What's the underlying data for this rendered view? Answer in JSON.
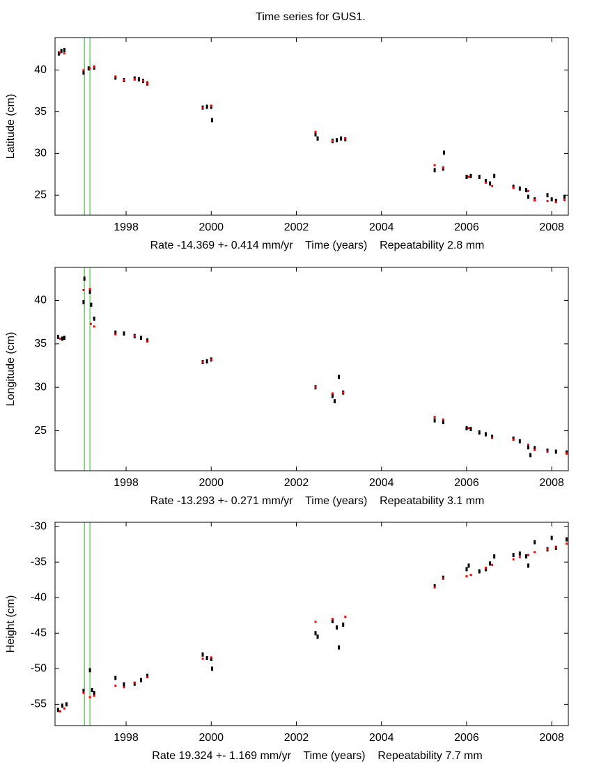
{
  "title": "Time series for GUS1.",
  "chart_data": [
    {
      "type": "scatter",
      "ylabel": "Latitude (cm)",
      "xlabel": "Rate -14.369 +- 0.414 mm/yr    Time (years)    Repeatability 2.8 mm",
      "xlim": [
        1996.33,
        2008.39
      ],
      "ylim": [
        22.6,
        43.9
      ],
      "xticks": [
        1998,
        2000,
        2002,
        2004,
        2006,
        2008
      ],
      "yticks": [
        25,
        30,
        35,
        40
      ],
      "vlines": [
        1997.02,
        1997.15
      ],
      "vline_color": "#00cc00",
      "series": [
        {
          "color": "#000000",
          "x": [
            1996.42,
            1996.48,
            1996.55,
            1997.0,
            1997.12,
            1997.25,
            1997.75,
            1997.95,
            1998.2,
            1998.3,
            1998.4,
            1998.5,
            1999.8,
            1999.9,
            2000.0,
            2000.02,
            2002.45,
            2002.5,
            2002.85,
            2002.95,
            2003.05,
            2003.15,
            2005.25,
            2005.45,
            2005.47,
            2006.0,
            2006.1,
            2006.3,
            2006.45,
            2006.55,
            2006.65,
            2007.1,
            2007.25,
            2007.4,
            2007.45,
            2007.6,
            2007.9,
            2008.0,
            2008.1,
            2008.3
          ],
          "values": [
            42.0,
            42.3,
            42.4,
            39.7,
            40.2,
            40.3,
            39.1,
            38.8,
            39.0,
            38.9,
            38.7,
            38.4,
            35.5,
            35.6,
            35.6,
            34.0,
            32.3,
            31.8,
            31.5,
            31.6,
            31.8,
            31.7,
            28.0,
            28.2,
            30.1,
            27.2,
            27.3,
            27.2,
            26.7,
            26.4,
            27.3,
            26.0,
            25.8,
            25.6,
            24.8,
            24.5,
            25.0,
            24.5,
            24.3,
            24.8
          ]
        },
        {
          "color": "#ff0000",
          "x": [
            1996.45,
            1996.55,
            1997.0,
            1997.15,
            1997.25,
            1997.75,
            1997.95,
            1998.2,
            1998.4,
            1998.5,
            1999.8,
            2000.0,
            2002.45,
            2002.85,
            2003.15,
            2005.25,
            2005.45,
            2006.05,
            2006.45,
            2006.6,
            2007.1,
            2007.45,
            2007.6,
            2007.9,
            2008.1,
            2008.3
          ],
          "values": [
            42.1,
            42.0,
            40.0,
            40.2,
            40.4,
            39.2,
            38.8,
            38.9,
            38.7,
            38.4,
            35.5,
            35.7,
            32.6,
            31.5,
            31.8,
            28.6,
            28.3,
            27.2,
            26.5,
            26.1,
            25.9,
            25.5,
            24.4,
            24.3,
            24.2,
            24.4
          ]
        }
      ]
    },
    {
      "type": "scatter",
      "ylabel": "Longitude (cm)",
      "xlabel": "Rate -13.293 +- 0.271 mm/yr    Time (years)    Repeatability 3.1 mm",
      "xlim": [
        1996.33,
        2008.39
      ],
      "ylim": [
        20.4,
        43.8
      ],
      "xticks": [
        1998,
        2000,
        2002,
        2004,
        2006,
        2008
      ],
      "yticks": [
        25,
        30,
        35,
        40
      ],
      "vlines": [
        1997.02,
        1997.15
      ],
      "vline_color": "#00cc00",
      "series": [
        {
          "color": "#000000",
          "x": [
            1996.4,
            1996.5,
            1996.55,
            1997.0,
            1997.02,
            1997.15,
            1997.18,
            1997.25,
            1997.75,
            1997.95,
            1998.2,
            1998.35,
            1998.5,
            1999.8,
            1999.9,
            2000.0,
            2002.45,
            2002.85,
            2002.9,
            2003.0,
            2003.1,
            2005.25,
            2005.45,
            2006.0,
            2006.1,
            2006.3,
            2006.45,
            2006.6,
            2007.1,
            2007.25,
            2007.45,
            2007.5,
            2007.6,
            2007.9,
            2008.1,
            2008.35
          ],
          "values": [
            35.8,
            35.6,
            35.7,
            39.8,
            42.5,
            41.0,
            39.5,
            37.9,
            36.3,
            36.2,
            35.9,
            35.7,
            35.4,
            32.9,
            33.0,
            33.2,
            30.0,
            29.0,
            28.4,
            31.2,
            29.4,
            26.2,
            26.0,
            25.3,
            25.2,
            24.8,
            24.6,
            24.3,
            24.1,
            23.8,
            23.1,
            22.2,
            23.0,
            22.7,
            22.6,
            22.5
          ]
        },
        {
          "color": "#ff0000",
          "x": [
            1996.45,
            1997.0,
            1997.15,
            1997.17,
            1997.25,
            1997.75,
            1998.2,
            1998.5,
            1999.8,
            2000.0,
            2002.45,
            2002.85,
            2003.1,
            2005.25,
            2005.45,
            2006.05,
            2006.6,
            2007.1,
            2007.45,
            2007.6,
            2007.9,
            2008.35
          ],
          "values": [
            35.6,
            41.2,
            41.3,
            37.3,
            37.0,
            36.1,
            35.9,
            35.3,
            32.9,
            33.2,
            30.0,
            29.3,
            29.4,
            26.6,
            26.3,
            25.3,
            24.2,
            24.0,
            23.4,
            22.8,
            22.6,
            22.4
          ]
        }
      ]
    },
    {
      "type": "scatter",
      "ylabel": "Height (cm)",
      "xlabel": "Rate 19.324 +- 1.169 mm/yr    Time (years)    Repeatability 7.7 mm",
      "xlim": [
        1996.33,
        2008.39
      ],
      "ylim": [
        -58.0,
        -29.4
      ],
      "xticks": [
        1998,
        2000,
        2002,
        2004,
        2006,
        2008
      ],
      "yticks": [
        -55,
        -50,
        -45,
        -40,
        -35,
        -30
      ],
      "vlines": [
        1997.02,
        1997.15
      ],
      "vline_color": "#00cc00",
      "series": [
        {
          "color": "#000000",
          "x": [
            1996.4,
            1996.5,
            1996.6,
            1997.0,
            1997.15,
            1997.2,
            1997.25,
            1997.75,
            1997.95,
            1998.2,
            1998.35,
            1998.5,
            1999.8,
            1999.9,
            2000.0,
            2000.02,
            2002.45,
            2002.5,
            2002.85,
            2002.95,
            2003.0,
            2003.1,
            2005.25,
            2005.45,
            2006.0,
            2006.05,
            2006.3,
            2006.45,
            2006.55,
            2006.65,
            2007.1,
            2007.25,
            2007.4,
            2007.45,
            2007.6,
            2007.9,
            2008.0,
            2008.1,
            2008.35
          ],
          "values": [
            -55.8,
            -55.2,
            -55.0,
            -53.1,
            -50.2,
            -53.0,
            -53.4,
            -51.3,
            -52.2,
            -52.1,
            -51.6,
            -51.0,
            -48.0,
            -48.5,
            -48.6,
            -50.0,
            -45.0,
            -45.5,
            -43.3,
            -44.2,
            -47.0,
            -43.8,
            -38.4,
            -37.2,
            -36.0,
            -35.5,
            -36.3,
            -36.0,
            -35.2,
            -34.2,
            -34.0,
            -33.8,
            -34.2,
            -35.5,
            -32.2,
            -33.2,
            -31.6,
            -33.0,
            -31.8
          ]
        },
        {
          "color": "#ff0000",
          "x": [
            1996.45,
            1996.55,
            1997.0,
            1997.15,
            1997.25,
            1997.75,
            1997.95,
            1998.2,
            1998.5,
            1999.8,
            2000.0,
            2002.45,
            2002.85,
            2003.15,
            2005.25,
            2005.45,
            2006.0,
            2006.1,
            2006.45,
            2006.6,
            2007.1,
            2007.25,
            2007.45,
            2007.6,
            2007.9,
            2008.1,
            2008.35
          ],
          "values": [
            -56.0,
            -55.6,
            -53.4,
            -54.0,
            -53.8,
            -52.4,
            -52.6,
            -52.0,
            -51.2,
            -48.6,
            -48.4,
            -43.4,
            -43.0,
            -42.7,
            -38.5,
            -37.3,
            -37.0,
            -36.8,
            -35.8,
            -35.4,
            -34.6,
            -34.3,
            -34.0,
            -33.6,
            -33.2,
            -32.9,
            -32.4
          ]
        }
      ]
    }
  ]
}
